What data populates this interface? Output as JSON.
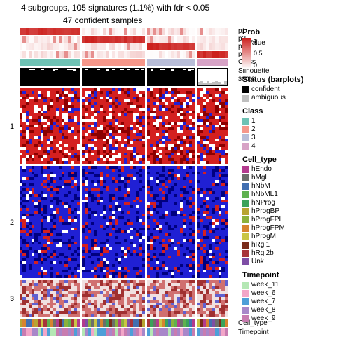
{
  "title_line1": "4 subgroups, 105 signatures (1.1%) with fdr < 0.05",
  "title_line2": "47 confident samples",
  "title_fontsize": 12,
  "background": "#ffffff",
  "groups": {
    "count": 4,
    "widths": [
      86,
      90,
      68,
      44
    ],
    "cols": [
      20,
      21,
      16,
      10
    ],
    "gap": 3
  },
  "p_tracks": {
    "height": 10,
    "p1": {
      "label": "p1",
      "active_group": 0,
      "color": "#e21f1d"
    },
    "p2": {
      "label": "p2",
      "active_group": 1,
      "color": "#e21f1d"
    },
    "p3": {
      "label": "p3",
      "active_group": 2,
      "color": "#e21f1d"
    },
    "p4": {
      "label": "p4",
      "active_group": 3,
      "color": "#e21f1d"
    }
  },
  "value_label_short": "Value",
  "ticks_small": [
    "5",
    "4",
    "^"
  ],
  "class_track": {
    "label": "Class",
    "height": 10,
    "colors": [
      "#6ec2b4",
      "#f6978a",
      "#b9bed8",
      "#d7a3c6"
    ]
  },
  "silhouette": {
    "label": "Silhouette",
    "sublabel": "score",
    "height": 26,
    "profiles": [
      [
        0.96,
        0.95,
        0.97,
        0.9,
        0.92,
        1.0,
        0.96,
        0.9,
        0.95,
        0.94,
        0.96,
        0.85,
        0.92,
        0.94,
        0.95,
        0.97,
        0.93,
        0.9,
        0.87,
        0.95
      ],
      [
        0.98,
        0.92,
        0.96,
        0.98,
        0.94,
        0.9,
        1.0,
        0.97,
        0.88,
        0.95,
        0.93,
        0.95,
        0.99,
        0.92,
        0.96,
        0.91,
        0.98,
        0.94,
        0.9,
        0.95,
        0.92
      ],
      [
        0.97,
        0.88,
        0.95,
        0.98,
        0.9,
        0.93,
        0.97,
        0.96,
        0.89,
        0.98,
        0.94,
        0.95,
        0.9,
        0.96,
        0.85,
        0.92
      ],
      [
        0.2,
        0.3,
        0.15,
        0.25,
        0.18,
        0.22,
        0.3,
        0.2,
        0.1,
        0.25
      ]
    ],
    "last_ambiguous": true
  },
  "signature_rows": {
    "labels": [
      "1",
      "2",
      "3"
    ],
    "heights": [
      108,
      160,
      52
    ],
    "gap": 3,
    "palettes": [
      {
        "base": "#d42020",
        "alt": "#ffffff",
        "deep": "#8b0000",
        "accent": "#2020d4",
        "ratio_base": 0.55
      },
      {
        "base": "#2020d4",
        "alt": "#ffffff",
        "deep": "#000080",
        "accent": "#d42020",
        "ratio_base": 0.65
      },
      {
        "base": "#d07070",
        "alt": "#f0e0e0",
        "deep": "#a03030",
        "accent": "#6060d0",
        "ratio_base": 0.4
      }
    ]
  },
  "bottom_tracks": {
    "height": 12,
    "cell_type": {
      "label": "Cell_type"
    },
    "timepoint": {
      "label": "Timepoint"
    }
  },
  "legends": {
    "prob": {
      "title": "Prob",
      "gradient_top": "#cc1f1c",
      "gradient_bottom": "#ffffff",
      "ticks": [
        "1",
        "0.5",
        "0"
      ]
    },
    "status": {
      "title": "Status (barplots)",
      "items": [
        {
          "label": "confident",
          "color": "#000000"
        },
        {
          "label": "ambiguous",
          "color": "#bfbfbf"
        }
      ]
    },
    "class": {
      "title": "Class",
      "items": [
        {
          "label": "1",
          "color": "#6ec2b4"
        },
        {
          "label": "2",
          "color": "#f6978a"
        },
        {
          "label": "3",
          "color": "#b9bed8"
        },
        {
          "label": "4",
          "color": "#d7a3c6"
        }
      ]
    },
    "cell_type": {
      "title": "Cell_type",
      "items": [
        {
          "label": "hEndo",
          "color": "#b33b8e"
        },
        {
          "label": "hMgl",
          "color": "#6b6f6b"
        },
        {
          "label": "hNbM",
          "color": "#416fb0"
        },
        {
          "label": "hNbML1",
          "color": "#5fb14f"
        },
        {
          "label": "hNProg",
          "color": "#3aa35a"
        },
        {
          "label": "hProgBP",
          "color": "#b7a432"
        },
        {
          "label": "hProgFPL",
          "color": "#8bb13c"
        },
        {
          "label": "hProgFPM",
          "color": "#d6842f"
        },
        {
          "label": "hProgM",
          "color": "#c9c544"
        },
        {
          "label": "hRgl1",
          "color": "#7a2c1a"
        },
        {
          "label": "hRgl2b",
          "color": "#a8343a"
        },
        {
          "label": "Unk",
          "color": "#7e4ea5"
        }
      ]
    },
    "timepoint": {
      "title": "Timepoint",
      "items": [
        {
          "label": "week_11",
          "color": "#b4e7b4"
        },
        {
          "label": "week_6",
          "color": "#f2a6c8"
        },
        {
          "label": "week_7",
          "color": "#4d9fd8"
        },
        {
          "label": "week_8",
          "color": "#a887c9"
        },
        {
          "label": "week_9",
          "color": "#c87cb0"
        }
      ]
    }
  }
}
